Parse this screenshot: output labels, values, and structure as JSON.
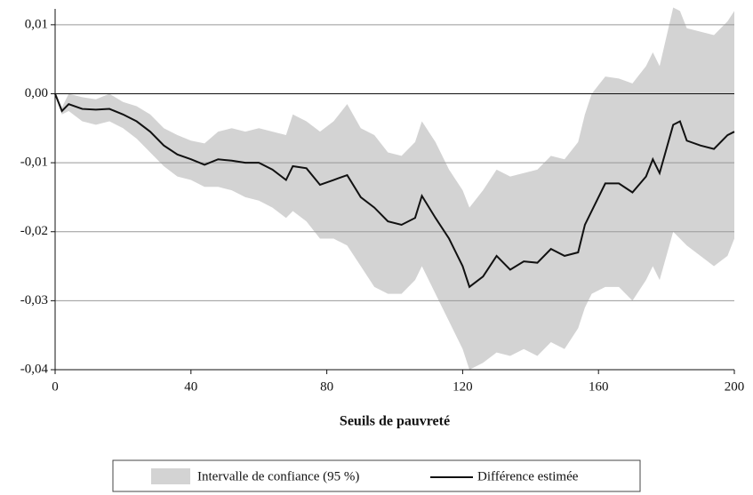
{
  "chart_data": {
    "type": "line",
    "xlabel": "Seuils de pauvreté",
    "x": [
      0,
      2,
      4,
      8,
      12,
      16,
      20,
      24,
      28,
      32,
      36,
      40,
      44,
      48,
      52,
      56,
      60,
      64,
      68,
      70,
      74,
      78,
      82,
      86,
      90,
      94,
      98,
      102,
      106,
      108,
      112,
      116,
      120,
      122,
      126,
      130,
      134,
      138,
      142,
      146,
      150,
      154,
      156,
      158,
      162,
      166,
      170,
      174,
      176,
      178,
      182,
      184,
      186,
      190,
      194,
      198,
      200
    ],
    "band": {
      "name": "Intervalle de confiance (95 %)",
      "color": "#d3d3d3",
      "lower": [
        0,
        -0.003,
        -0.0025,
        -0.004,
        -0.0045,
        -0.004,
        -0.005,
        -0.0065,
        -0.0085,
        -0.0105,
        -0.012,
        -0.0125,
        -0.0135,
        -0.0135,
        -0.014,
        -0.015,
        -0.0155,
        -0.0165,
        -0.018,
        -0.017,
        -0.0185,
        -0.021,
        -0.021,
        -0.022,
        -0.025,
        -0.028,
        -0.029,
        -0.029,
        -0.027,
        -0.025,
        -0.029,
        -0.033,
        -0.037,
        -0.04,
        -0.039,
        -0.0375,
        -0.038,
        -0.037,
        -0.038,
        -0.036,
        -0.037,
        -0.034,
        -0.031,
        -0.029,
        -0.028,
        -0.028,
        -0.03,
        -0.027,
        -0.025,
        -0.027,
        -0.02,
        -0.021,
        -0.022,
        -0.0235,
        -0.025,
        -0.0235,
        -0.021
      ],
      "upper": [
        0,
        -0.002,
        0,
        -0.0005,
        -0.0008,
        0,
        -0.0012,
        -0.0018,
        -0.003,
        -0.005,
        -0.006,
        -0.0068,
        -0.0072,
        -0.0055,
        -0.005,
        -0.0055,
        -0.005,
        -0.0055,
        -0.006,
        -0.003,
        -0.004,
        -0.0055,
        -0.004,
        -0.0015,
        -0.005,
        -0.006,
        -0.0085,
        -0.009,
        -0.007,
        -0.004,
        -0.007,
        -0.011,
        -0.014,
        -0.0165,
        -0.014,
        -0.011,
        -0.012,
        -0.0115,
        -0.011,
        -0.009,
        -0.0095,
        -0.007,
        -0.003,
        0,
        0.0025,
        0.0022,
        0.0015,
        0.004,
        0.006,
        0.004,
        0.0125,
        0.012,
        0.0095,
        0.009,
        0.0085,
        0.0105,
        0.012
      ]
    },
    "series": [
      {
        "name": "Différence estimée",
        "color": "#111111",
        "values": [
          0,
          -0.0025,
          -0.0015,
          -0.0022,
          -0.0023,
          -0.0022,
          -0.003,
          -0.004,
          -0.0055,
          -0.0075,
          -0.0088,
          -0.0095,
          -0.0103,
          -0.0095,
          -0.0097,
          -0.01,
          -0.01,
          -0.011,
          -0.0125,
          -0.0105,
          -0.0108,
          -0.0132,
          -0.0125,
          -0.0118,
          -0.015,
          -0.0165,
          -0.0185,
          -0.019,
          -0.018,
          -0.0148,
          -0.018,
          -0.021,
          -0.025,
          -0.028,
          -0.0265,
          -0.0235,
          -0.0255,
          -0.0243,
          -0.0245,
          -0.0225,
          -0.0235,
          -0.023,
          -0.019,
          -0.017,
          -0.013,
          -0.013,
          -0.0143,
          -0.012,
          -0.0095,
          -0.0115,
          -0.0045,
          -0.004,
          -0.0068,
          -0.0075,
          -0.008,
          -0.006,
          -0.0055
        ]
      }
    ],
    "xlim": [
      0,
      200
    ],
    "xticks": [
      0,
      40,
      80,
      120,
      160,
      200
    ],
    "ylim": [
      -0.04,
      0.0123
    ],
    "yticks": [
      {
        "value": -0.04,
        "label": "-0,04"
      },
      {
        "value": -0.03,
        "label": "-0,03"
      },
      {
        "value": -0.02,
        "label": "-0,02"
      },
      {
        "value": -0.01,
        "label": "-0,01"
      },
      {
        "value": 0,
        "label": "0,00"
      },
      {
        "value": 0.01,
        "label": "0,01"
      }
    ],
    "grid": true
  }
}
